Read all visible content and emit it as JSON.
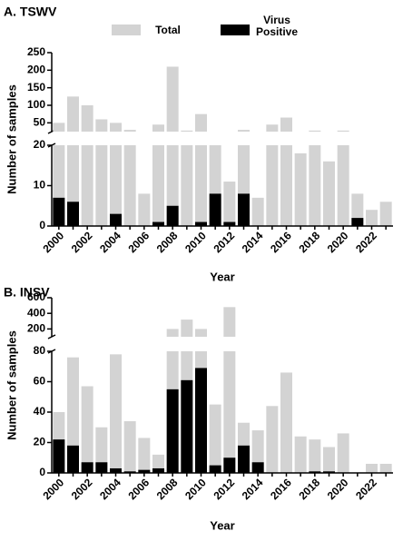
{
  "chart_data": [
    {
      "type": "bar",
      "title": "A. TSWV",
      "xlabel": "Year",
      "ylabel": "Number of samples",
      "categories": [
        "2000",
        null,
        "2002",
        null,
        "2004",
        null,
        "2006",
        null,
        "2008",
        null,
        "2010",
        null,
        "2012",
        null,
        "2014",
        null,
        "2016",
        null,
        "2018",
        null,
        "2020",
        null,
        "2022",
        null
      ],
      "series": [
        {
          "name": "Total",
          "color": "#d3d3d3",
          "values": [
            50,
            125,
            100,
            60,
            50,
            30,
            8,
            45,
            210,
            28,
            75,
            20,
            11,
            30,
            7,
            45,
            65,
            18,
            28,
            16,
            28,
            8,
            4,
            6
          ]
        },
        {
          "name": "Virus Positive",
          "color": "#000000",
          "values": [
            7,
            6,
            0,
            0,
            3,
            0,
            0,
            1,
            5,
            0,
            1,
            8,
            1,
            8,
            0,
            0,
            0,
            0,
            0,
            0,
            0,
            2,
            0,
            0
          ]
        }
      ],
      "ylim": [
        0,
        250
      ],
      "y_break": [
        20,
        25
      ],
      "yticks": [
        0,
        10,
        20,
        50,
        100,
        150,
        200,
        250
      ],
      "legend": "top"
    },
    {
      "type": "bar",
      "title": "B. INSV",
      "xlabel": "Year",
      "ylabel": "Number of samples",
      "categories": [
        "2000",
        null,
        "2002",
        null,
        "2004",
        null,
        "2006",
        null,
        "2008",
        null,
        "2010",
        null,
        "2012",
        null,
        "2014",
        null,
        "2016",
        null,
        "2018",
        null,
        "2020",
        null,
        "2022",
        null
      ],
      "series": [
        {
          "color": "#d3d3d3",
          "values": [
            40,
            76,
            57,
            30,
            78,
            34,
            23,
            12,
            200,
            320,
            200,
            45,
            480,
            33,
            28,
            44,
            66,
            24,
            22,
            17,
            26,
            0,
            6,
            6
          ]
        },
        {
          "color": "#000000",
          "values": [
            22,
            18,
            7,
            7,
            3,
            1,
            2,
            3,
            55,
            61,
            69,
            5,
            10,
            18,
            7,
            0,
            0,
            0,
            1,
            1,
            0,
            0,
            0,
            0
          ]
        }
      ],
      "ylim": [
        0,
        600
      ],
      "y_break": [
        80,
        100
      ],
      "yticks": [
        0,
        20,
        40,
        60,
        80,
        200,
        400,
        600
      ]
    }
  ]
}
